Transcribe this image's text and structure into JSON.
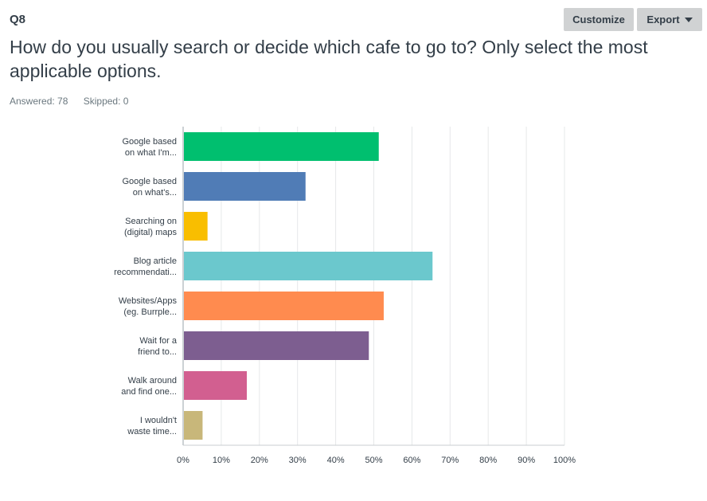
{
  "question": {
    "number": "Q8",
    "title": "How do you usually search or decide which cafe to go to? Only select the most applicable options.",
    "answered": "Answered: 78",
    "skipped": "Skipped: 0"
  },
  "toolbar": {
    "customize_label": "Customize",
    "export_label": "Export"
  },
  "chart_data": {
    "type": "bar",
    "orientation": "horizontal",
    "categories": [
      [
        "Google based",
        "on what I'm..."
      ],
      [
        "Google based",
        "on what's..."
      ],
      [
        "Searching on",
        "(digital) maps"
      ],
      [
        "Blog article",
        "recommendati..."
      ],
      [
        "Websites/Apps",
        "(eg. Burrple..."
      ],
      [
        "Wait for a",
        "friend to..."
      ],
      [
        "Walk around",
        "and find one..."
      ],
      [
        "I wouldn't",
        "waste time..."
      ]
    ],
    "values": [
      51.3,
      32.1,
      6.4,
      65.4,
      52.6,
      48.7,
      16.7,
      5.1
    ],
    "colors": [
      "#00bf6f",
      "#507cb6",
      "#f9be00",
      "#6bc8cd",
      "#ff8b4f",
      "#7d5e90",
      "#d25f90",
      "#c8b77a"
    ],
    "xticks": [
      "0%",
      "10%",
      "20%",
      "30%",
      "40%",
      "50%",
      "60%",
      "70%",
      "80%",
      "90%",
      "100%"
    ],
    "xlim": [
      0,
      100
    ],
    "grid": true
  }
}
